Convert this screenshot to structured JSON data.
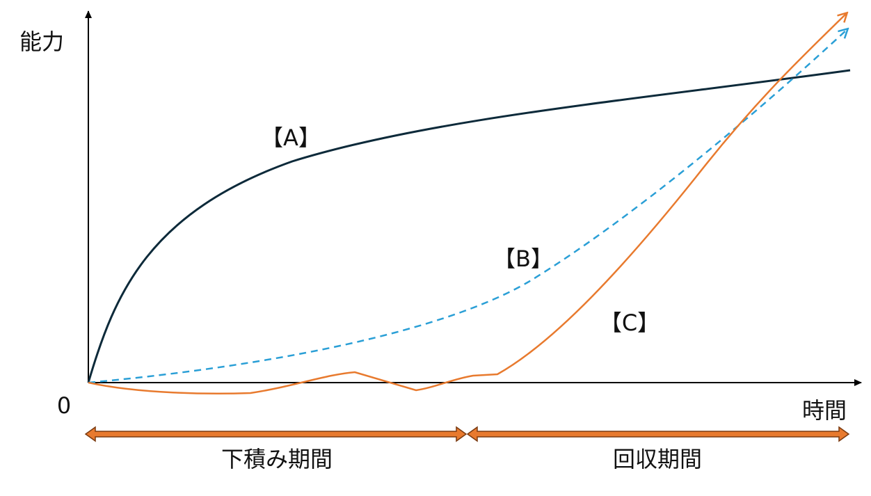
{
  "y_axis_label": "能力",
  "origin_label": "0",
  "x_axis_label": "時間",
  "curves": [
    {
      "label": "【A】"
    },
    {
      "label": "【B】"
    },
    {
      "label": "【C】"
    }
  ],
  "periods": [
    {
      "label": "下積み期間"
    },
    {
      "label": "回収期間"
    }
  ]
}
